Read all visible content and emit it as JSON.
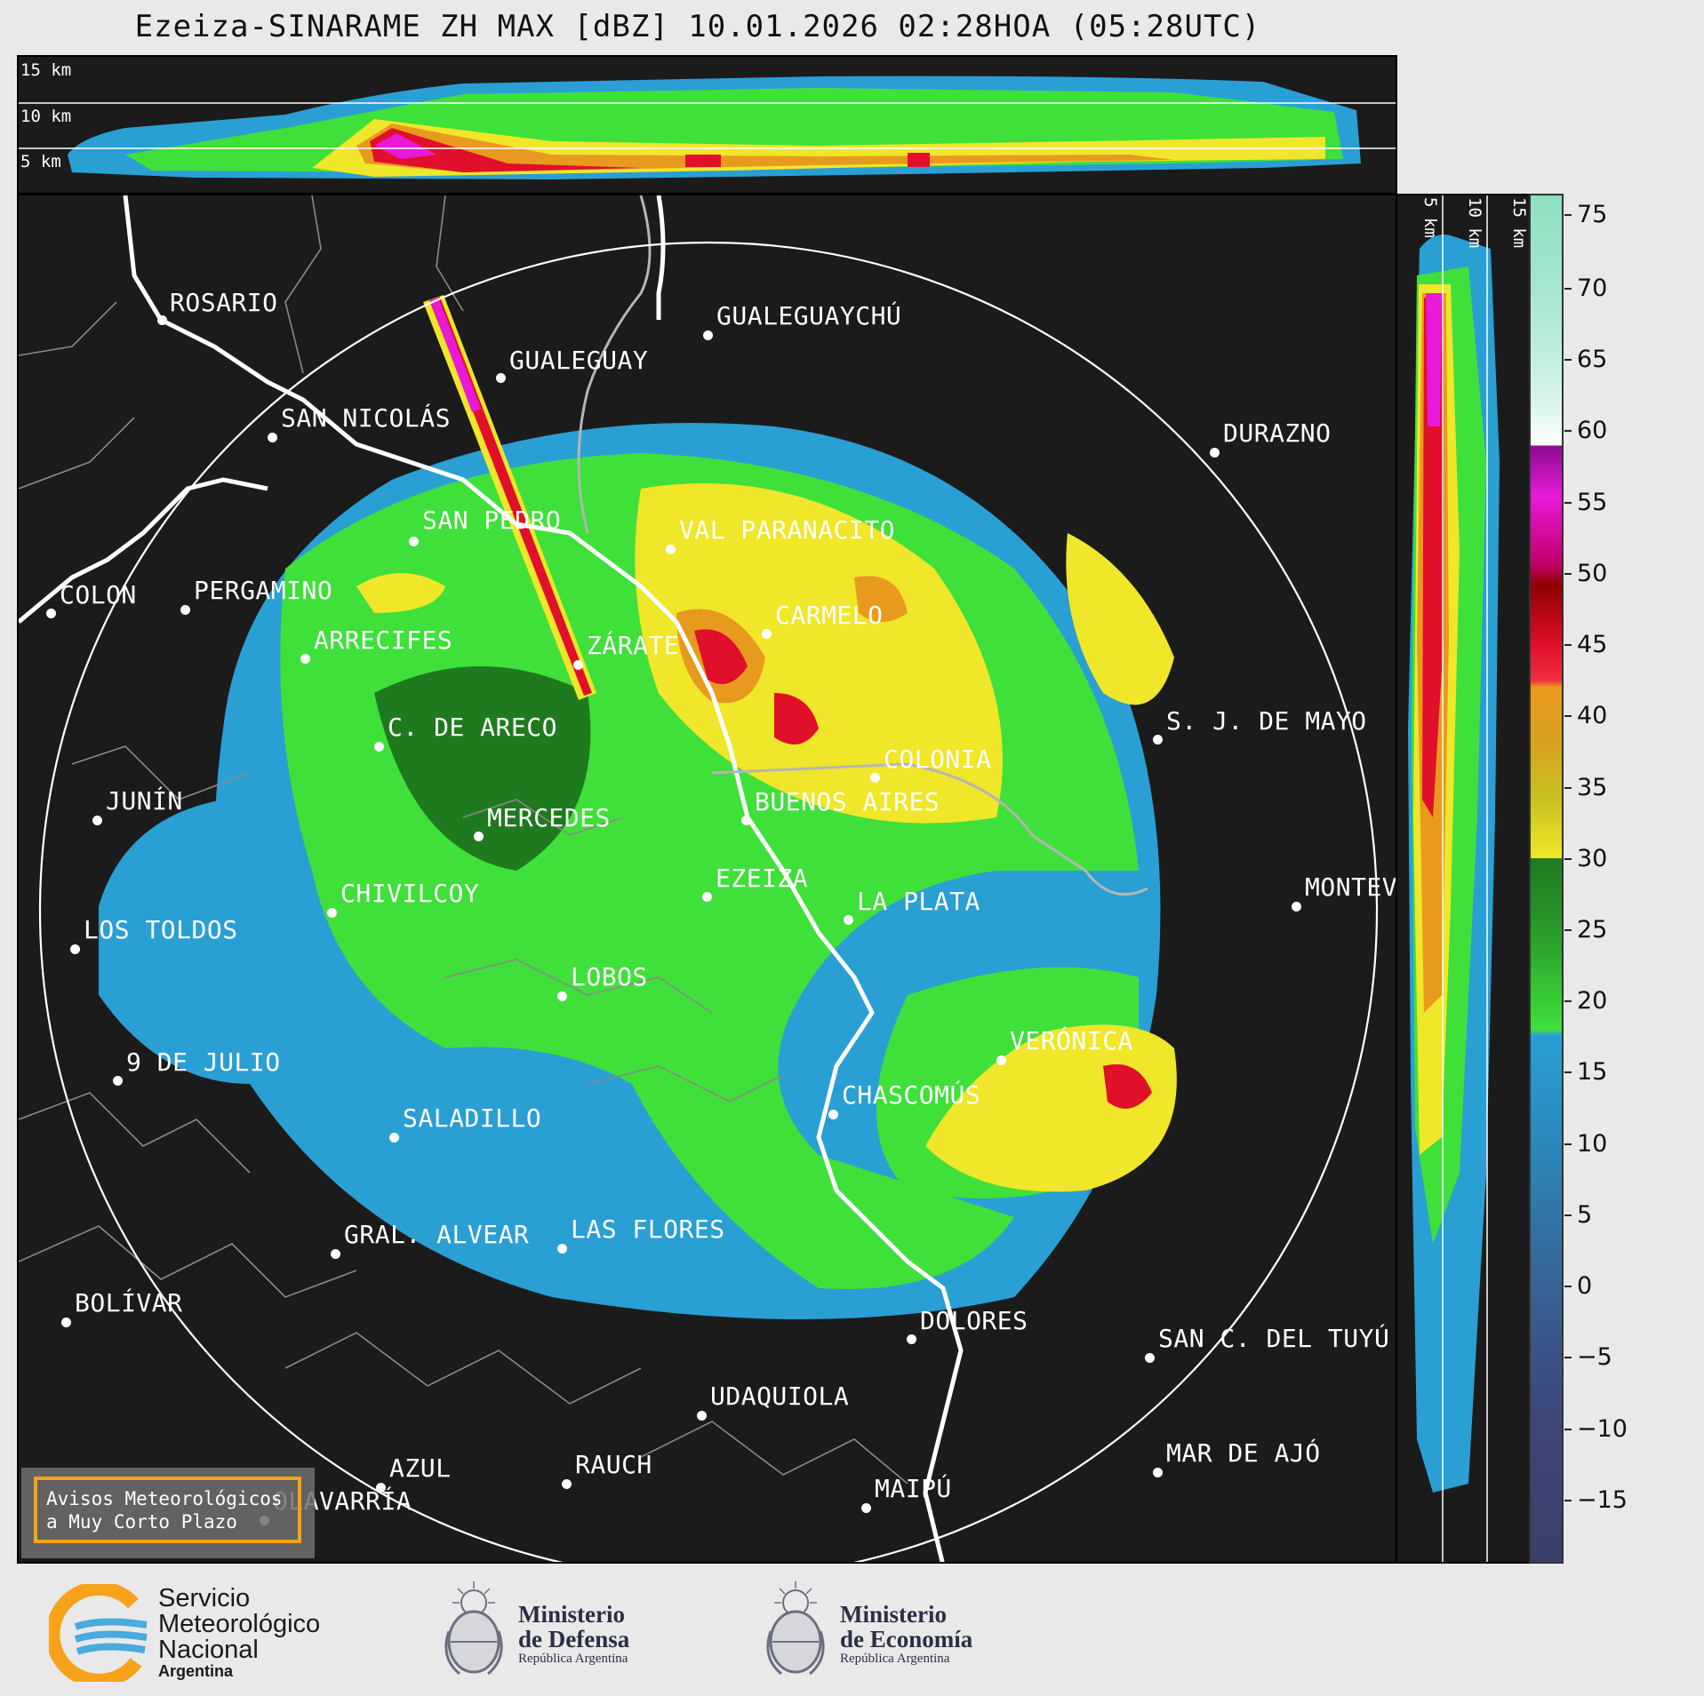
{
  "header": {
    "title": "Ezeiza-SINARAME ZH MAX [dBZ] 10.01.2026 02:28HOA (05:28UTC)"
  },
  "cross_section_top": {
    "altitude_labels": [
      "15 km",
      "10 km",
      "5 km"
    ]
  },
  "cross_section_side": {
    "altitude_labels": [
      "5 km",
      "10 km",
      "15 km"
    ]
  },
  "map": {
    "range_ring": "single circle around radar",
    "cities": [
      {
        "name": "ROSARIO"
      },
      {
        "name": "GUALEGUAYCHÚ"
      },
      {
        "name": "GUALEGUAY"
      },
      {
        "name": "SAN NICOLÁS"
      },
      {
        "name": "DURAZNO"
      },
      {
        "name": "SAN PEDRO"
      },
      {
        "name": "VAL PARANACITO"
      },
      {
        "name": "COLON"
      },
      {
        "name": "PERGAMINO"
      },
      {
        "name": "CARMELO"
      },
      {
        "name": "ARRECIFES"
      },
      {
        "name": "ZÁRATE"
      },
      {
        "name": "C. DE ARECO"
      },
      {
        "name": "S. J. DE MAYO"
      },
      {
        "name": "COLONIA"
      },
      {
        "name": "JUNÍN"
      },
      {
        "name": "BUENOS AIRES"
      },
      {
        "name": "MERCEDES"
      },
      {
        "name": "EZEIZA"
      },
      {
        "name": "MONTEV"
      },
      {
        "name": "CHIVILCOY"
      },
      {
        "name": "LA PLATA"
      },
      {
        "name": "LOS TOLDOS"
      },
      {
        "name": "LOBOS"
      },
      {
        "name": "VERÓNICA"
      },
      {
        "name": "9 DE JULIO"
      },
      {
        "name": "CHASCOMÚS"
      },
      {
        "name": "SALADILLO"
      },
      {
        "name": "GRAL. ALVEAR"
      },
      {
        "name": "LAS FLORES"
      },
      {
        "name": "BOLÍVAR"
      },
      {
        "name": "DOLORES"
      },
      {
        "name": "SAN C. DEL TUYÚ"
      },
      {
        "name": "UDAQUIOLA"
      },
      {
        "name": "MAR DE AJÓ"
      },
      {
        "name": "AZUL"
      },
      {
        "name": "RAUCH"
      },
      {
        "name": "MAIPÚ"
      },
      {
        "name": "OLAVARRÍA"
      }
    ]
  },
  "colorbar": {
    "unit": "dBZ",
    "ticks": [
      "75",
      "70",
      "65",
      "60",
      "55",
      "50",
      "45",
      "40",
      "35",
      "30",
      "25",
      "20",
      "15",
      "10",
      "5",
      "0",
      "−5",
      "−10",
      "−15"
    ],
    "colors": {
      "low": "#3b3f6b",
      "blue": "#2a9fd4",
      "green": "#3fe03a",
      "dark_green": "#1f7a1f",
      "yellow": "#f0e62a",
      "orange": "#e89a1f",
      "red": "#e0102a",
      "magenta": "#e81ad8",
      "white": "#ffffff",
      "teal": "#8fe0c0"
    }
  },
  "aviso": {
    "line1": "Avisos Meteorológicos",
    "line2": "a Muy Corto Plazo"
  },
  "footer": {
    "smn_line1": "Servicio",
    "smn_line2": "Meteorológico",
    "smn_line3": "Nacional",
    "smn_line4": "Argentina",
    "defensa_line1": "Ministerio",
    "defensa_line2": "de Defensa",
    "defensa_line3": "República Argentina",
    "economia_line1": "Ministerio",
    "economia_line2": "de Economía",
    "economia_line3": "República Argentina"
  }
}
